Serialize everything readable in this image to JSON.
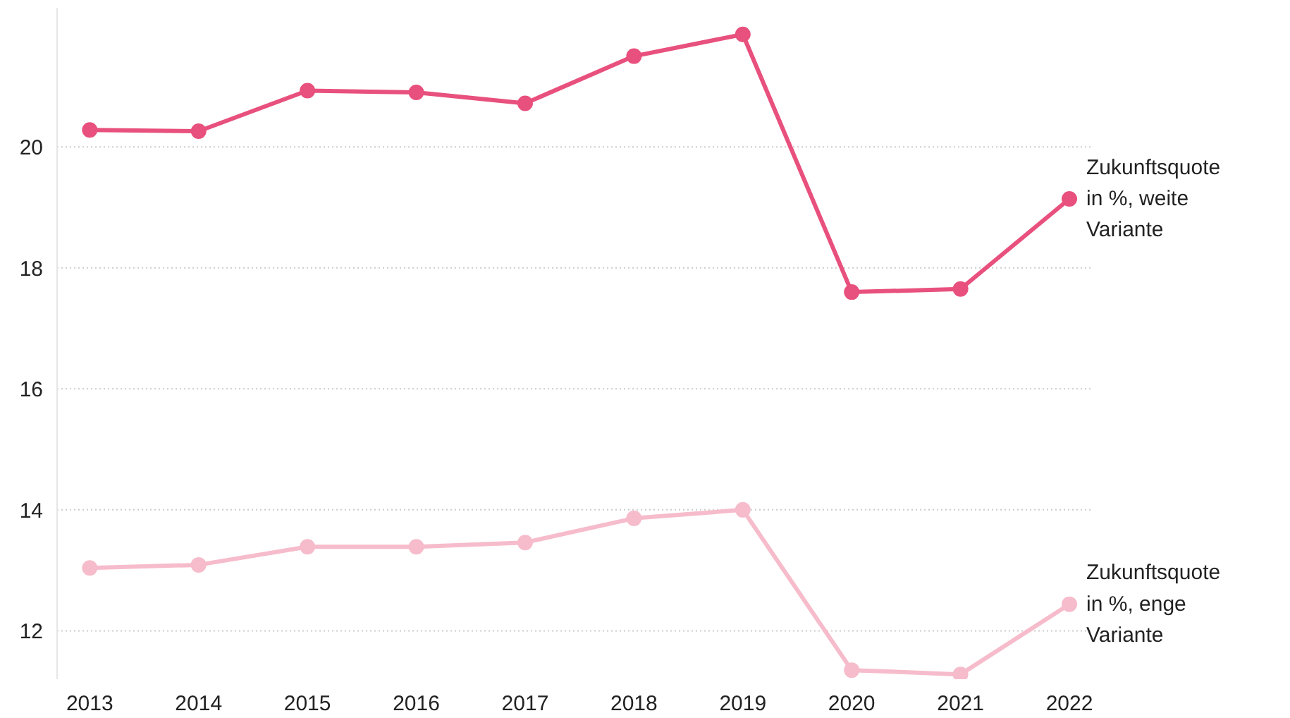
{
  "chart_data": {
    "type": "line",
    "x": [
      2013,
      2014,
      2015,
      2016,
      2017,
      2018,
      2019,
      2020,
      2021,
      2022
    ],
    "series": [
      {
        "name": "Zukunftsquote\nin %, weite\nVariante",
        "color": "#e8507d",
        "values": [
          20.28,
          20.26,
          20.93,
          20.9,
          20.72,
          21.5,
          21.86,
          17.6,
          17.65,
          19.14
        ]
      },
      {
        "name": "Zukunftsquote\nin %, enge\nVariante",
        "color": "#f6bccb",
        "values": [
          13.04,
          13.09,
          13.39,
          13.39,
          13.46,
          13.86,
          14.0,
          11.35,
          11.28,
          12.44
        ]
      }
    ],
    "xlim": [
      2012.7,
      2022.22
    ],
    "xticks": [
      2013,
      2014,
      2015,
      2016,
      2017,
      2018,
      2019,
      2020,
      2021,
      2022
    ],
    "ylim": [
      11.2,
      22.3
    ],
    "yticks": [
      12,
      14,
      16,
      18,
      20
    ],
    "grid": "y",
    "marker": "circle",
    "line_style": "solid"
  }
}
